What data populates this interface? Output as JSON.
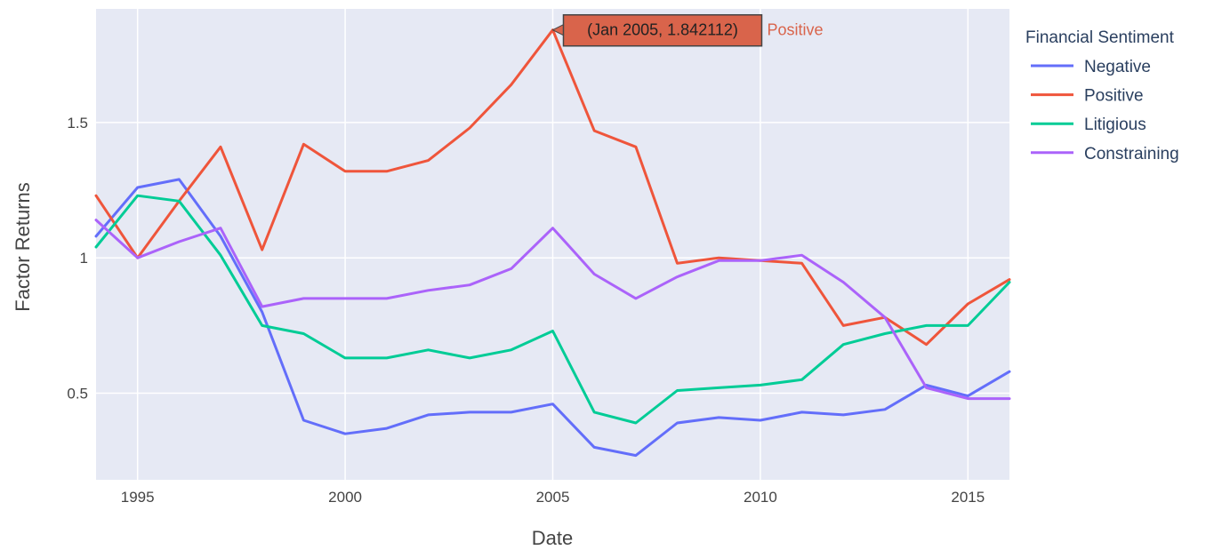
{
  "chart_data": {
    "type": "line",
    "xlabel": "Date",
    "ylabel": "Factor Returns",
    "x": [
      1994,
      1995,
      1996,
      1997,
      1998,
      1999,
      2000,
      2001,
      2002,
      2003,
      2004,
      2005,
      2006,
      2007,
      2008,
      2009,
      2010,
      2011,
      2012,
      2013,
      2014,
      2015,
      2016
    ],
    "xlim": [
      1994,
      2016
    ],
    "ylim": [
      0.18,
      1.92
    ],
    "x_ticks": [
      1995,
      2000,
      2005,
      2010,
      2015
    ],
    "x_tick_labels": [
      "1995",
      "2000",
      "2005",
      "2010",
      "2015"
    ],
    "y_ticks": [
      0.5,
      1,
      1.5
    ],
    "y_tick_labels": [
      "0.5",
      "1",
      "1.5"
    ],
    "grid": true,
    "legend": {
      "title": "Financial Sentiment",
      "placement": "right"
    },
    "series": [
      {
        "name": "Negative",
        "color": "#636efa",
        "values": [
          1.08,
          1.26,
          1.29,
          1.08,
          0.8,
          0.4,
          0.35,
          0.37,
          0.42,
          0.43,
          0.43,
          0.46,
          0.3,
          0.27,
          0.39,
          0.41,
          0.4,
          0.43,
          0.42,
          0.44,
          0.53,
          0.49,
          0.58
        ]
      },
      {
        "name": "Positive",
        "color": "#ef553b",
        "values": [
          1.23,
          1.0,
          1.21,
          1.41,
          1.03,
          1.42,
          1.32,
          1.32,
          1.36,
          1.48,
          1.64,
          1.842112,
          1.47,
          1.41,
          0.98,
          1.0,
          0.99,
          0.98,
          0.75,
          0.78,
          0.68,
          0.83,
          0.92
        ]
      },
      {
        "name": "Litigious",
        "color": "#00cc96",
        "values": [
          1.04,
          1.23,
          1.21,
          1.01,
          0.75,
          0.72,
          0.63,
          0.63,
          0.66,
          0.63,
          0.66,
          0.73,
          0.43,
          0.39,
          0.51,
          0.52,
          0.53,
          0.55,
          0.68,
          0.72,
          0.75,
          0.75,
          0.91
        ]
      },
      {
        "name": "Constraining",
        "color": "#ab63fa",
        "values": [
          1.14,
          1.0,
          1.06,
          1.11,
          0.82,
          0.85,
          0.85,
          0.85,
          0.88,
          0.9,
          0.96,
          1.11,
          0.94,
          0.85,
          0.93,
          0.99,
          0.99,
          1.01,
          0.91,
          0.78,
          0.52,
          0.48,
          0.48
        ]
      }
    ],
    "hover": {
      "series": "Positive",
      "x": 2005,
      "y": 1.842112,
      "text": "(Jan 2005, 1.842112)",
      "name": "Positive",
      "box_color": "#d9644b"
    }
  }
}
